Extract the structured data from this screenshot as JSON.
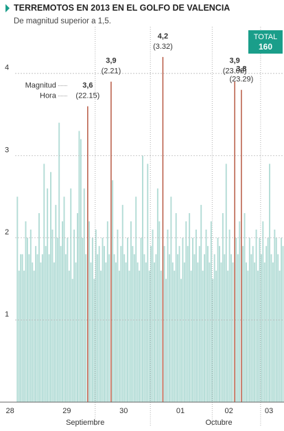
{
  "chart_data": {
    "type": "bar",
    "title": "TERREMOTOS EN 2013 EN EL GOLFO DE VALENCIA",
    "subtitle": "De magnitud superior a 1,5.",
    "total_label": "TOTAL",
    "total_value": 160,
    "legend_labels": [
      "Magnitud",
      "Hora"
    ],
    "color": "#b3dcd6",
    "highlight_color": "#b5533c",
    "values": [
      2.5,
      1.6,
      1.8,
      1.8,
      1.6,
      2.2,
      2.0,
      1.8,
      2.1,
      1.7,
      1.6,
      1.9,
      1.8,
      2.3,
      1.7,
      1.8,
      2.9,
      1.9,
      2.6,
      1.8,
      2.8,
      2.1,
      1.7,
      2.4,
      2.0,
      3.4,
      1.9,
      2.2,
      2.5,
      1.8,
      2.0,
      1.6,
      2.6,
      1.5,
      2.1,
      1.7,
      2.3,
      3.3,
      3.2,
      2.0,
      2.6,
      1.8,
      3.6,
      2.2,
      1.7,
      2.0,
      1.5,
      2.1,
      1.8,
      1.9,
      1.6,
      2.0,
      1.9,
      1.7,
      2.2,
      1.8,
      3.9,
      2.7,
      1.8,
      1.7,
      2.1,
      1.6,
      1.9,
      2.4,
      1.8,
      1.7,
      2.0,
      1.6,
      2.2,
      1.9,
      1.8,
      2.5,
      1.7,
      1.6,
      2.0,
      3.0,
      1.8,
      1.7,
      2.9,
      1.6,
      1.9,
      2.1,
      1.7,
      1.8,
      2.6,
      2.2,
      1.6,
      4.2,
      1.9,
      1.5,
      2.1,
      1.8,
      2.5,
      1.7,
      1.6,
      2.3,
      1.8,
      1.9,
      1.5,
      2.0,
      1.7,
      2.2,
      1.9,
      2.3,
      1.6,
      2.0,
      1.8,
      2.1,
      1.7,
      1.9,
      2.4,
      1.6,
      1.8,
      2.1,
      1.9,
      1.7,
      2.2,
      1.5,
      1.8,
      1.6,
      2.0,
      1.9,
      1.7,
      2.3,
      1.8,
      2.9,
      1.6,
      2.1,
      1.8,
      1.7,
      3.9,
      2.0,
      1.8,
      2.2,
      3.8,
      1.9,
      2.3,
      1.7,
      1.6,
      2.0,
      1.8,
      1.9,
      1.7,
      2.1,
      1.6,
      2.0,
      1.8,
      2.2,
      1.7,
      1.9,
      2.0,
      2.9,
      1.8,
      1.7,
      2.1,
      2.0,
      1.8,
      1.6,
      2.0,
      1.9
    ],
    "value_labels": [
      null,
      null,
      null,
      null,
      null,
      null,
      null,
      null,
      null,
      null,
      null,
      null,
      null,
      null,
      null,
      null,
      null,
      null,
      null,
      null,
      null,
      null,
      null,
      null,
      null,
      null,
      null,
      null,
      null,
      null,
      null,
      null,
      null,
      null,
      null,
      null,
      null,
      null,
      null,
      null,
      null,
      null,
      "3,6",
      null,
      null,
      null,
      null,
      null,
      null,
      null,
      null,
      null,
      null,
      null,
      null,
      null,
      "3,9",
      null,
      null,
      null,
      null,
      null,
      null,
      null,
      null,
      null,
      null,
      null,
      null,
      null,
      null,
      null,
      null,
      null,
      null,
      null,
      null,
      null,
      null,
      null,
      null,
      null,
      null,
      null,
      null,
      null,
      null,
      "4,2",
      null,
      null,
      null,
      null,
      null,
      null,
      null,
      null,
      null,
      null,
      null,
      null,
      null,
      null,
      null,
      null,
      null,
      null,
      null,
      null,
      null,
      null,
      null,
      null,
      null,
      null,
      null,
      null,
      null,
      null,
      null,
      null,
      null,
      null,
      null,
      null,
      null,
      null,
      null,
      null,
      null,
      null,
      "3,9",
      null,
      null,
      null,
      "3,8",
      null,
      null,
      null,
      null,
      null,
      null,
      null,
      null,
      null,
      null,
      null,
      null,
      null,
      null,
      null,
      null,
      null,
      null,
      null,
      null,
      null,
      null,
      null,
      null,
      null
    ],
    "time_labels": [
      null,
      null,
      null,
      null,
      null,
      null,
      null,
      null,
      null,
      null,
      null,
      null,
      null,
      null,
      null,
      null,
      null,
      null,
      null,
      null,
      null,
      null,
      null,
      null,
      null,
      null,
      null,
      null,
      null,
      null,
      null,
      null,
      null,
      null,
      null,
      null,
      null,
      null,
      null,
      null,
      null,
      null,
      "(22.15)",
      null,
      null,
      null,
      null,
      null,
      null,
      null,
      null,
      null,
      null,
      null,
      null,
      null,
      "(2.21)",
      null,
      null,
      null,
      null,
      null,
      null,
      null,
      null,
      null,
      null,
      null,
      null,
      null,
      null,
      null,
      null,
      null,
      null,
      null,
      null,
      null,
      null,
      null,
      null,
      null,
      null,
      null,
      null,
      null,
      null,
      "(3.32)",
      null,
      null,
      null,
      null,
      null,
      null,
      null,
      null,
      null,
      null,
      null,
      null,
      null,
      null,
      null,
      null,
      null,
      null,
      null,
      null,
      null,
      null,
      null,
      null,
      null,
      null,
      null,
      null,
      null,
      null,
      null,
      null,
      null,
      null,
      null,
      null,
      null,
      null,
      null,
      null,
      null,
      null,
      "(23.06)",
      null,
      null,
      null,
      "(23.29)",
      null,
      null,
      null,
      null,
      null,
      null,
      null,
      null,
      null,
      null,
      null,
      null,
      null,
      null,
      null,
      null,
      null,
      null,
      null,
      null,
      null,
      null,
      null,
      null,
      null
    ],
    "ylim": [
      0,
      4.4
    ],
    "yticks": [
      1,
      2,
      3,
      4
    ],
    "xlim": [
      -10,
      160
    ],
    "xticks": [
      {
        "value": -4,
        "label": "28"
      },
      {
        "value": 30,
        "label": "29"
      },
      {
        "value": 64,
        "label": "30"
      },
      {
        "value": 98,
        "label": "01"
      },
      {
        "value": 127,
        "label": "02"
      },
      {
        "value": 151,
        "label": "03"
      }
    ],
    "month_ticks": [
      {
        "value": 41,
        "label": "Septiembre"
      },
      {
        "value": 121,
        "label": "Octubre"
      }
    ],
    "xgrid": [
      47,
      80,
      117,
      146
    ],
    "grid": true
  }
}
